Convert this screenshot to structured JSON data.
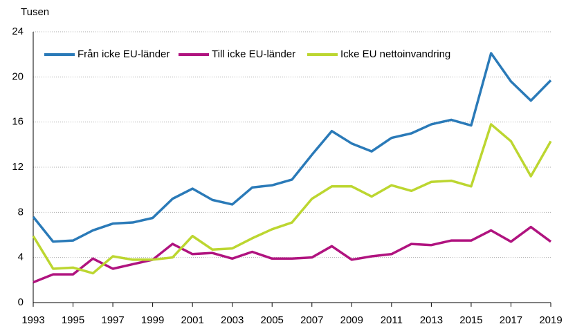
{
  "chart_data": {
    "type": "line",
    "y_unit_label": "Tusen",
    "x": [
      1993,
      1994,
      1995,
      1996,
      1997,
      1998,
      1999,
      2000,
      2001,
      2002,
      2003,
      2004,
      2005,
      2006,
      2007,
      2008,
      2009,
      2010,
      2011,
      2012,
      2013,
      2014,
      2015,
      2016,
      2017,
      2018,
      2019
    ],
    "series": [
      {
        "name": "Från icke EU-länder",
        "color": "#2a7ab8",
        "values": [
          7.6,
          5.4,
          5.5,
          6.4,
          7.0,
          7.1,
          7.5,
          9.2,
          10.1,
          9.1,
          8.7,
          10.2,
          10.4,
          10.9,
          13.1,
          15.2,
          14.1,
          13.4,
          14.6,
          15.0,
          15.8,
          16.2,
          15.7,
          22.1,
          19.6,
          17.9,
          19.7
        ]
      },
      {
        "name": "Till icke EU-länder",
        "color": "#b0137f",
        "values": [
          1.8,
          2.5,
          2.5,
          3.9,
          3.0,
          3.4,
          3.8,
          5.2,
          4.3,
          4.4,
          3.9,
          4.5,
          3.9,
          3.9,
          4.0,
          5.0,
          3.8,
          4.1,
          4.3,
          5.2,
          5.1,
          5.5,
          5.5,
          6.4,
          5.4,
          6.7,
          5.4
        ]
      },
      {
        "name": "Icke EU nettoinvandring",
        "color": "#bcd630",
        "values": [
          5.9,
          3.0,
          3.1,
          2.6,
          4.1,
          3.8,
          3.8,
          4.0,
          5.9,
          4.7,
          4.8,
          5.7,
          6.5,
          7.1,
          9.2,
          10.3,
          10.3,
          9.4,
          10.4,
          9.9,
          10.7,
          10.8,
          10.3,
          15.8,
          14.3,
          11.2,
          14.3
        ]
      }
    ],
    "xlim": [
      1993,
      2019
    ],
    "xticks": [
      1993,
      1995,
      1997,
      1999,
      2001,
      2003,
      2005,
      2007,
      2009,
      2011,
      2013,
      2015,
      2017,
      2019
    ],
    "ylim": [
      0,
      24
    ],
    "yticks": [
      0,
      4,
      8,
      12,
      16,
      20,
      24
    ],
    "grid": true,
    "legend": "top-left"
  }
}
